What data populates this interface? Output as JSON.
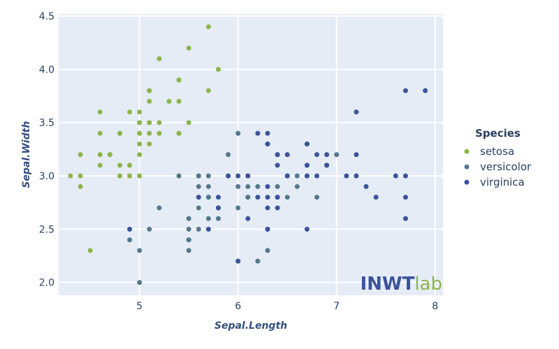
{
  "chart_data": {
    "type": "scatter",
    "xlabel": "Sepal.Length",
    "ylabel": "Sepal.Width",
    "xlim": [
      4.18,
      8.08
    ],
    "ylim": [
      1.88,
      4.52
    ],
    "x_ticks": [
      5,
      6,
      7,
      8
    ],
    "y_ticks": [
      2.0,
      2.5,
      3.0,
      3.5,
      4.0,
      4.5
    ],
    "x_tick_labels": [
      "5",
      "6",
      "7",
      "8"
    ],
    "y_tick_labels": [
      "2.0",
      "2.5",
      "3.0",
      "3.5",
      "4.0",
      "4.5"
    ],
    "grid": true,
    "legend": {
      "title": "Species",
      "position": "right"
    },
    "watermark": {
      "main": "INWT",
      "sub": "lab"
    },
    "colors": {
      "plot_bg": "#e5ecf6",
      "grid": "#ffffff"
    },
    "series": [
      {
        "name": "setosa",
        "color": "#8db44b",
        "points": [
          [
            5.1,
            3.5
          ],
          [
            4.9,
            3.0
          ],
          [
            4.7,
            3.2
          ],
          [
            4.6,
            3.1
          ],
          [
            5.0,
            3.6
          ],
          [
            5.4,
            3.9
          ],
          [
            4.6,
            3.4
          ],
          [
            5.0,
            3.4
          ],
          [
            4.4,
            2.9
          ],
          [
            4.9,
            3.1
          ],
          [
            5.4,
            3.7
          ],
          [
            4.8,
            3.4
          ],
          [
            4.8,
            3.0
          ],
          [
            4.3,
            3.0
          ],
          [
            5.8,
            4.0
          ],
          [
            5.7,
            4.4
          ],
          [
            5.4,
            3.9
          ],
          [
            5.1,
            3.5
          ],
          [
            5.7,
            3.8
          ],
          [
            5.1,
            3.8
          ],
          [
            5.4,
            3.4
          ],
          [
            5.1,
            3.7
          ],
          [
            4.6,
            3.6
          ],
          [
            5.1,
            3.3
          ],
          [
            4.8,
            3.4
          ],
          [
            5.0,
            3.0
          ],
          [
            5.0,
            3.4
          ],
          [
            5.2,
            3.5
          ],
          [
            5.2,
            3.4
          ],
          [
            4.7,
            3.2
          ],
          [
            4.8,
            3.1
          ],
          [
            5.4,
            3.4
          ],
          [
            5.2,
            4.1
          ],
          [
            5.5,
            4.2
          ],
          [
            4.9,
            3.1
          ],
          [
            5.0,
            3.2
          ],
          [
            5.5,
            3.5
          ],
          [
            4.9,
            3.6
          ],
          [
            4.4,
            3.0
          ],
          [
            5.1,
            3.4
          ],
          [
            5.0,
            3.5
          ],
          [
            4.5,
            2.3
          ],
          [
            4.4,
            3.2
          ],
          [
            5.0,
            3.5
          ],
          [
            5.1,
            3.8
          ],
          [
            4.8,
            3.0
          ],
          [
            5.1,
            3.8
          ],
          [
            4.6,
            3.2
          ],
          [
            5.3,
            3.7
          ],
          [
            5.0,
            3.3
          ]
        ]
      },
      {
        "name": "versicolor",
        "color": "#55788a",
        "points": [
          [
            7.0,
            3.2
          ],
          [
            6.4,
            3.2
          ],
          [
            6.9,
            3.1
          ],
          [
            5.5,
            2.3
          ],
          [
            6.5,
            2.8
          ],
          [
            5.7,
            2.8
          ],
          [
            6.3,
            3.3
          ],
          [
            4.9,
            2.4
          ],
          [
            6.6,
            2.9
          ],
          [
            5.2,
            2.7
          ],
          [
            5.0,
            2.0
          ],
          [
            5.9,
            3.0
          ],
          [
            6.0,
            2.2
          ],
          [
            6.1,
            2.9
          ],
          [
            5.6,
            2.9
          ],
          [
            6.7,
            3.1
          ],
          [
            5.6,
            3.0
          ],
          [
            5.8,
            2.7
          ],
          [
            6.2,
            2.2
          ],
          [
            5.6,
            2.5
          ],
          [
            5.9,
            3.2
          ],
          [
            6.1,
            2.8
          ],
          [
            6.3,
            2.5
          ],
          [
            6.1,
            2.8
          ],
          [
            6.4,
            2.9
          ],
          [
            6.6,
            3.0
          ],
          [
            6.8,
            2.8
          ],
          [
            6.7,
            3.0
          ],
          [
            6.0,
            2.9
          ],
          [
            5.7,
            2.6
          ],
          [
            5.5,
            2.4
          ],
          [
            5.5,
            2.4
          ],
          [
            5.8,
            2.7
          ],
          [
            6.0,
            2.7
          ],
          [
            5.4,
            3.0
          ],
          [
            6.0,
            3.4
          ],
          [
            6.7,
            3.1
          ],
          [
            6.3,
            2.3
          ],
          [
            5.6,
            3.0
          ],
          [
            5.5,
            2.5
          ],
          [
            5.5,
            2.6
          ],
          [
            6.1,
            3.0
          ],
          [
            5.8,
            2.6
          ],
          [
            5.0,
            2.3
          ],
          [
            5.6,
            2.7
          ],
          [
            5.7,
            3.0
          ],
          [
            5.7,
            2.9
          ],
          [
            6.2,
            2.9
          ],
          [
            5.1,
            2.5
          ],
          [
            5.7,
            2.8
          ]
        ]
      },
      {
        "name": "virginica",
        "color": "#3a539b",
        "points": [
          [
            6.3,
            3.3
          ],
          [
            5.8,
            2.7
          ],
          [
            7.1,
            3.0
          ],
          [
            6.3,
            2.9
          ],
          [
            6.5,
            3.0
          ],
          [
            7.6,
            3.0
          ],
          [
            4.9,
            2.5
          ],
          [
            7.3,
            2.9
          ],
          [
            6.7,
            2.5
          ],
          [
            7.2,
            3.6
          ],
          [
            6.5,
            3.2
          ],
          [
            6.4,
            2.7
          ],
          [
            6.8,
            3.0
          ],
          [
            5.7,
            2.5
          ],
          [
            5.8,
            2.8
          ],
          [
            6.4,
            3.2
          ],
          [
            6.5,
            3.0
          ],
          [
            7.7,
            3.8
          ],
          [
            7.7,
            2.6
          ],
          [
            6.0,
            2.2
          ],
          [
            6.9,
            3.2
          ],
          [
            5.6,
            2.8
          ],
          [
            7.7,
            2.8
          ],
          [
            6.3,
            2.7
          ],
          [
            6.7,
            3.3
          ],
          [
            7.2,
            3.2
          ],
          [
            6.2,
            2.8
          ],
          [
            6.1,
            3.0
          ],
          [
            6.4,
            2.8
          ],
          [
            7.2,
            3.0
          ],
          [
            7.4,
            2.8
          ],
          [
            7.9,
            3.8
          ],
          [
            6.4,
            2.8
          ],
          [
            6.3,
            2.8
          ],
          [
            6.1,
            2.6
          ],
          [
            7.7,
            3.0
          ],
          [
            6.3,
            3.4
          ],
          [
            6.4,
            3.1
          ],
          [
            6.0,
            3.0
          ],
          [
            6.9,
            3.1
          ],
          [
            6.7,
            3.1
          ],
          [
            6.9,
            3.1
          ],
          [
            5.8,
            2.7
          ],
          [
            6.8,
            3.2
          ],
          [
            6.7,
            3.3
          ],
          [
            6.7,
            3.0
          ],
          [
            6.3,
            2.5
          ],
          [
            6.5,
            3.0
          ],
          [
            6.2,
            3.4
          ],
          [
            5.9,
            3.0
          ]
        ]
      }
    ]
  }
}
